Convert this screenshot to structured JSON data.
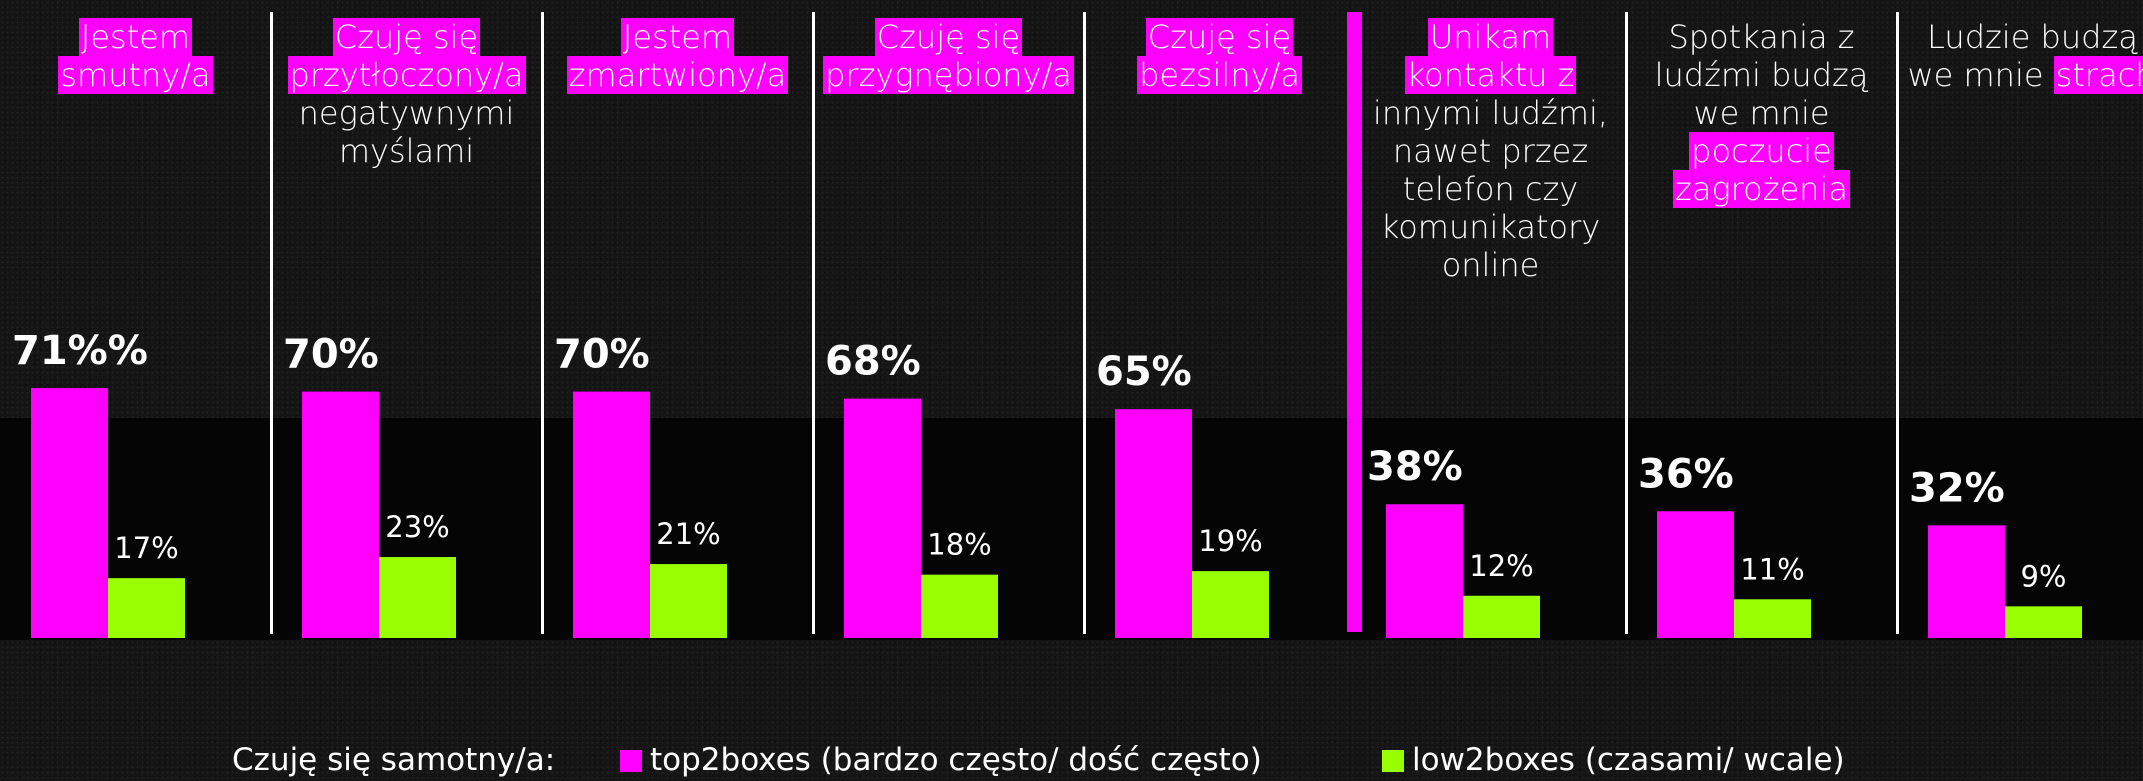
{
  "colors": {
    "top2boxes": "#ff00ff",
    "low2boxes": "#99ff00",
    "background": "#151515",
    "band": "#050505"
  },
  "chart_data": {
    "type": "bar",
    "categories": [
      "Jestem smutny/a",
      "Czuję się przytłoczony/a negatywnymi myślami",
      "Jestem zmartwiony/a",
      "Czuję się przygnębiony/a",
      "Czuję się bezsilny/a",
      "Unikam kontaktu z innymi ludźmi, nawet przez telefon czy komunikatory online",
      "Spotkania z ludźmi budzą we mnie poczucie zagrożenia",
      "Ludzie budzą we mnie strach"
    ],
    "series": [
      {
        "name": "top2boxes (bardzo często/ dość często)",
        "values": [
          71,
          70,
          70,
          68,
          65,
          38,
          36,
          32
        ]
      },
      {
        "name": "low2boxes (czasami/ wcale)",
        "values": [
          17,
          23,
          21,
          18,
          19,
          12,
          11,
          9
        ]
      }
    ],
    "top_labels": [
      "71%%",
      "70%",
      "70%",
      "68%",
      "65%",
      "38%",
      "36%",
      "32%"
    ],
    "low_labels": [
      "17%",
      "23%",
      "21%",
      "18%",
      "19%",
      "12%",
      "11%",
      "9%"
    ],
    "ylim": [
      0,
      100
    ],
    "grid": false,
    "legend_position": "bottom"
  },
  "panels": [
    {
      "lines": [
        [
          {
            "t": "Jestem",
            "hl": true
          }
        ],
        [
          {
            "t": "smutny/a",
            "hl": true
          }
        ]
      ]
    },
    {
      "lines": [
        [
          {
            "t": "Czuję się",
            "hl": true
          }
        ],
        [
          {
            "t": "przytłoczony/a",
            "hl": true
          }
        ],
        [
          {
            "t": "negatywnymi",
            "hl": false
          }
        ],
        [
          {
            "t": "myślami",
            "hl": false
          }
        ]
      ]
    },
    {
      "lines": [
        [
          {
            "t": "Jestem",
            "hl": true
          }
        ],
        [
          {
            "t": "zmartwiony/a",
            "hl": true
          }
        ]
      ]
    },
    {
      "lines": [
        [
          {
            "t": "Czuję się",
            "hl": true
          }
        ],
        [
          {
            "t": "przygnębiony/a",
            "hl": true
          }
        ]
      ]
    },
    {
      "lines": [
        [
          {
            "t": "Czuję się",
            "hl": true
          }
        ],
        [
          {
            "t": "bezsilny/a",
            "hl": true
          }
        ]
      ]
    },
    {
      "lines": [
        [
          {
            "t": "Unikam",
            "hl": true
          }
        ],
        [
          {
            "t": "kontaktu z",
            "hl": true
          }
        ],
        [
          {
            "t": "innymi ludźmi,",
            "hl": false
          }
        ],
        [
          {
            "t": "nawet przez",
            "hl": false
          }
        ],
        [
          {
            "t": "telefon czy",
            "hl": false
          }
        ],
        [
          {
            "t": "komunikatory",
            "hl": false
          }
        ],
        [
          {
            "t": "online",
            "hl": false
          }
        ]
      ]
    },
    {
      "lines": [
        [
          {
            "t": "Spotkania z",
            "hl": false
          }
        ],
        [
          {
            "t": "ludźmi budzą",
            "hl": false
          }
        ],
        [
          {
            "t": "we mnie",
            "hl": false
          }
        ],
        [
          {
            "t": "poczucie",
            "hl": true
          }
        ],
        [
          {
            "t": "zagrożenia",
            "hl": true
          }
        ]
      ]
    },
    {
      "lines": [
        [
          {
            "t": "Ludzie budzą",
            "hl": false
          }
        ],
        [
          {
            "t": "we mnie ",
            "hl": false
          },
          {
            "t": "strach",
            "hl": true
          }
        ]
      ]
    }
  ],
  "legend": {
    "prefix": "Czuję się samotny/a:",
    "top_label": "top2boxes (bardzo często/ dość często)",
    "low_label": "low2boxes (czasami/ wcale)"
  }
}
